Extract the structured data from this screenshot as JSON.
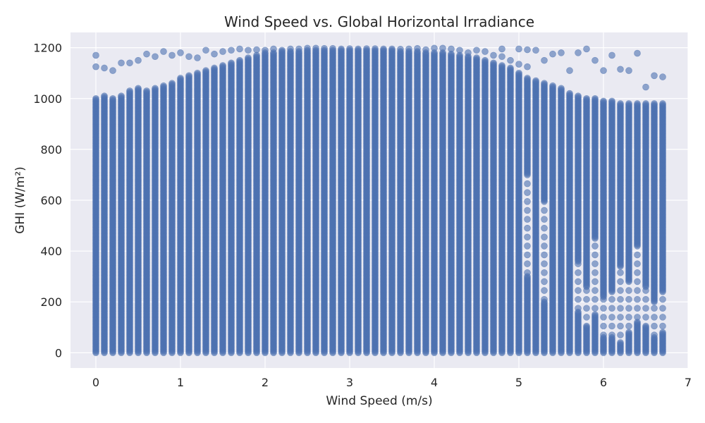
{
  "chart_data": {
    "type": "scatter",
    "title": "Wind Speed vs. Global Horizontal Irradiance",
    "xlabel": "Wind Speed (m/s)",
    "ylabel": "GHI (W/m²)",
    "xlim": [
      -0.3,
      7.0
    ],
    "ylim": [
      -60,
      1260
    ],
    "xticks": [
      0,
      1,
      2,
      3,
      4,
      5,
      6,
      7
    ],
    "yticks": [
      0,
      200,
      400,
      600,
      800,
      1000,
      1200
    ],
    "grid": true,
    "legend": "none",
    "colors": {
      "background": "#EAEAF2",
      "grid": "#FFFFFF",
      "marker": "#4C72B0"
    },
    "marker_alpha": 0.6,
    "series": [
      {
        "x_start": 0.0,
        "x_end": 6.7,
        "x_step": 0.1,
        "y_min": 0,
        "dense_top": [
          1000,
          1010,
          1000,
          1010,
          1030,
          1040,
          1030,
          1040,
          1050,
          1060,
          1080,
          1090,
          1100,
          1110,
          1120,
          1130,
          1140,
          1150,
          1160,
          1170,
          1180,
          1180,
          1185,
          1185,
          1185,
          1190,
          1190,
          1190,
          1190,
          1190,
          1190,
          1190,
          1190,
          1190,
          1190,
          1190,
          1185,
          1185,
          1185,
          1180,
          1180,
          1180,
          1175,
          1170,
          1165,
          1160,
          1150,
          1140,
          1130,
          1120,
          1100,
          1080,
          1070,
          1060,
          1050,
          1040,
          1020,
          1010,
          1000,
          1000,
          990,
          990,
          980,
          980,
          980,
          980,
          980,
          980
        ],
        "outliers": [
          [
            0.0,
            1170
          ],
          [
            0.0,
            1125
          ],
          [
            0.1,
            1120
          ],
          [
            0.2,
            1110
          ],
          [
            0.3,
            1140
          ],
          [
            0.4,
            1140
          ],
          [
            0.5,
            1150
          ],
          [
            0.6,
            1175
          ],
          [
            0.7,
            1165
          ],
          [
            0.8,
            1185
          ],
          [
            0.9,
            1170
          ],
          [
            1.0,
            1180
          ],
          [
            1.1,
            1165
          ],
          [
            1.2,
            1160
          ],
          [
            1.3,
            1190
          ],
          [
            1.4,
            1175
          ],
          [
            1.5,
            1185
          ],
          [
            1.6,
            1190
          ],
          [
            1.7,
            1195
          ],
          [
            1.8,
            1190
          ],
          [
            1.9,
            1192
          ],
          [
            2.0,
            1190
          ],
          [
            2.1,
            1195
          ],
          [
            2.2,
            1190
          ],
          [
            2.3,
            1195
          ],
          [
            2.4,
            1195
          ],
          [
            2.5,
            1198
          ],
          [
            2.6,
            1198
          ],
          [
            2.7,
            1197
          ],
          [
            2.8,
            1197
          ],
          [
            2.9,
            1195
          ],
          [
            3.0,
            1196
          ],
          [
            3.1,
            1195
          ],
          [
            3.2,
            1196
          ],
          [
            3.3,
            1196
          ],
          [
            3.4,
            1195
          ],
          [
            3.5,
            1195
          ],
          [
            3.6,
            1194
          ],
          [
            3.7,
            1195
          ],
          [
            3.8,
            1197
          ],
          [
            3.9,
            1192
          ],
          [
            4.0,
            1198
          ],
          [
            4.1,
            1198
          ],
          [
            4.2,
            1195
          ],
          [
            4.3,
            1190
          ],
          [
            4.4,
            1180
          ],
          [
            4.5,
            1190
          ],
          [
            4.6,
            1185
          ],
          [
            4.7,
            1170
          ],
          [
            4.8,
            1195
          ],
          [
            4.9,
            1150
          ],
          [
            5.0,
            1195
          ],
          [
            5.1,
            1192
          ],
          [
            5.2,
            1190
          ],
          [
            5.3,
            1150
          ],
          [
            5.4,
            1175
          ],
          [
            5.5,
            1180
          ],
          [
            5.6,
            1110
          ],
          [
            5.7,
            1180
          ],
          [
            5.8,
            1195
          ],
          [
            5.9,
            1150
          ],
          [
            6.0,
            1110
          ],
          [
            6.1,
            1170
          ],
          [
            6.2,
            1115
          ],
          [
            6.3,
            1110
          ],
          [
            6.4,
            1178
          ],
          [
            6.5,
            1045
          ],
          [
            6.6,
            1090
          ],
          [
            6.7,
            1085
          ],
          [
            5.1,
            1125
          ],
          [
            4.8,
            1165
          ],
          [
            5.0,
            1135
          ]
        ],
        "gaps": [
          [
            5.1,
            300,
            700
          ],
          [
            5.3,
            200,
            600
          ],
          [
            5.9,
            150,
            450
          ],
          [
            6.1,
            60,
            240
          ],
          [
            6.2,
            40,
            340
          ],
          [
            6.3,
            80,
            280
          ],
          [
            6.4,
            120,
            420
          ],
          [
            6.5,
            100,
            260
          ],
          [
            6.6,
            60,
            200
          ],
          [
            6.7,
            80,
            240
          ],
          [
            5.7,
            160,
            360
          ],
          [
            6.0,
            60,
            220
          ],
          [
            5.8,
            100,
            260
          ]
        ]
      }
    ]
  }
}
